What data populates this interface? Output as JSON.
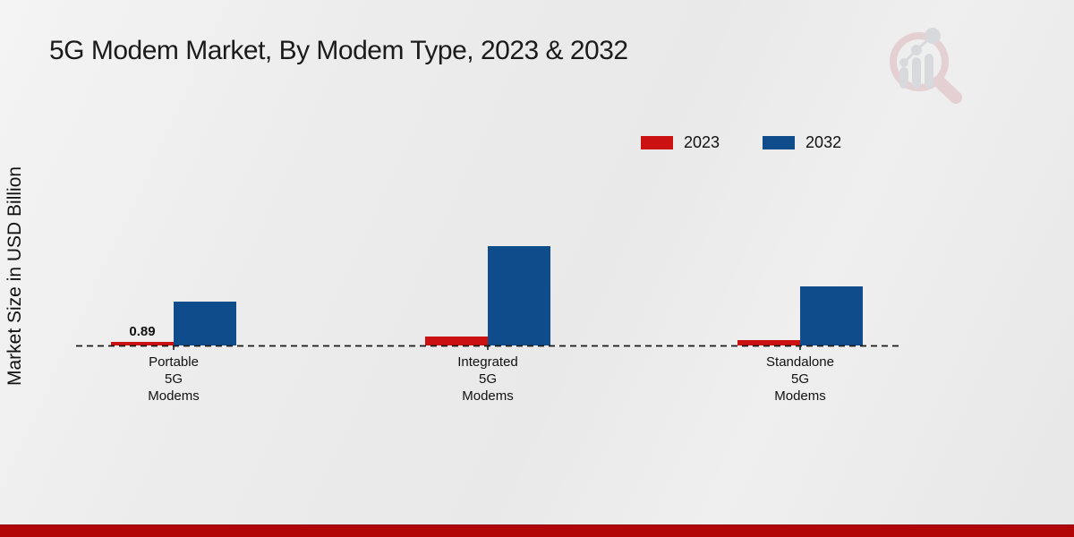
{
  "title": "5G Modem Market, By Modem Type, 2023 & 2032",
  "ylabel": "Market Size in USD Billion",
  "chart_data": {
    "type": "bar",
    "categories": [
      "Portable 5G Modems",
      "Integrated 5G Modems",
      "Standalone 5G Modems"
    ],
    "category_lines": [
      [
        "Portable",
        "5G",
        "Modems"
      ],
      [
        "Integrated",
        "5G",
        "Modems"
      ],
      [
        "Standalone",
        "5G",
        "Modems"
      ]
    ],
    "series": [
      {
        "name": "2023",
        "color": "#cc1111",
        "values": [
          0.89,
          2.0,
          1.15
        ]
      },
      {
        "name": "2032",
        "color": "#0f4c8c",
        "values": [
          9.7,
          21.9,
          13.0
        ]
      }
    ],
    "annotations": [
      {
        "series": 0,
        "category": 0,
        "text": "0.89"
      }
    ],
    "ylim": [
      0,
      25
    ],
    "grid": "off",
    "legend_position": "top-right",
    "baseline_style": "dashed"
  },
  "footer": {
    "color": "#b00606"
  },
  "logo": {
    "name": "market-research-growth-logo"
  }
}
